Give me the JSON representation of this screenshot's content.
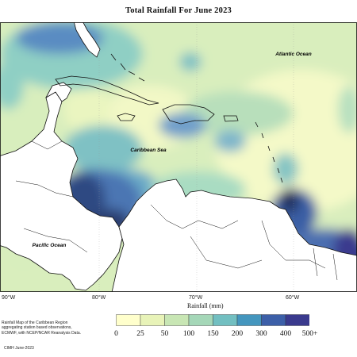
{
  "title": "Total Rainfall For June 2023",
  "labels": {
    "atlantic": "Atlantic Ocean",
    "caribbean": "Caribbean Sea",
    "pacific": "Pacific Ocean"
  },
  "longitudes": [
    "90°W",
    "80°W",
    "70°W",
    "60°W"
  ],
  "legend": {
    "title": "Rainfall (mm)",
    "ticks": [
      "0",
      "25",
      "50",
      "100",
      "150",
      "200",
      "300",
      "400",
      "500+"
    ],
    "colors": [
      "#ffffcc",
      "#e8f3b8",
      "#c8e6b4",
      "#a5d7b8",
      "#72bfc1",
      "#4496be",
      "#3c5fa8",
      "#3a3a8e",
      "#1f2a5c"
    ]
  },
  "note": "Rainfall Map of the Caribbean Region aggregating station based observations, ECMWF, with NCEP/NCAR Reanalysis Data.",
  "note_lines": [
    "Rainfall Map of the Caribbean Region",
    "aggregating station based observations,",
    "ECMWF, with NCEP/NCAR Reanalysis Data."
  ],
  "credit": "CIMH June-2023"
}
